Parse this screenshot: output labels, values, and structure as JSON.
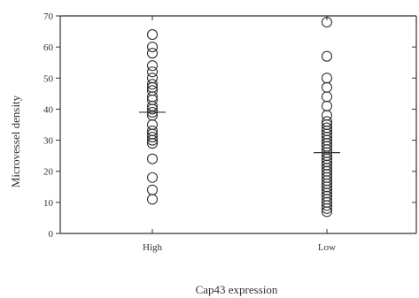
{
  "chart_data": {
    "type": "scatter",
    "xlabel": "Cap43 expression",
    "ylabel": "Microvessel density",
    "categories": [
      "High",
      "Low"
    ],
    "ylim": [
      0,
      70
    ],
    "yticks": [
      0,
      10,
      20,
      30,
      40,
      50,
      60,
      70
    ],
    "grid": false,
    "series": [
      {
        "category": "High",
        "values": [
          64,
          60,
          58,
          54,
          52,
          50,
          48,
          47,
          46,
          44,
          43,
          41,
          40,
          39,
          38,
          35,
          33,
          32,
          31,
          30,
          29,
          24,
          18,
          14,
          11
        ],
        "mean": 39
      },
      {
        "category": "Low",
        "values": [
          68,
          57,
          50,
          47,
          44,
          41,
          38,
          36,
          35,
          34,
          33,
          32,
          31,
          30,
          29,
          28,
          27,
          26,
          25,
          24,
          23,
          22,
          21,
          20,
          19,
          18,
          17,
          16,
          15,
          14,
          13,
          12,
          11,
          10,
          9,
          8,
          7
        ],
        "mean": 26
      }
    ]
  }
}
